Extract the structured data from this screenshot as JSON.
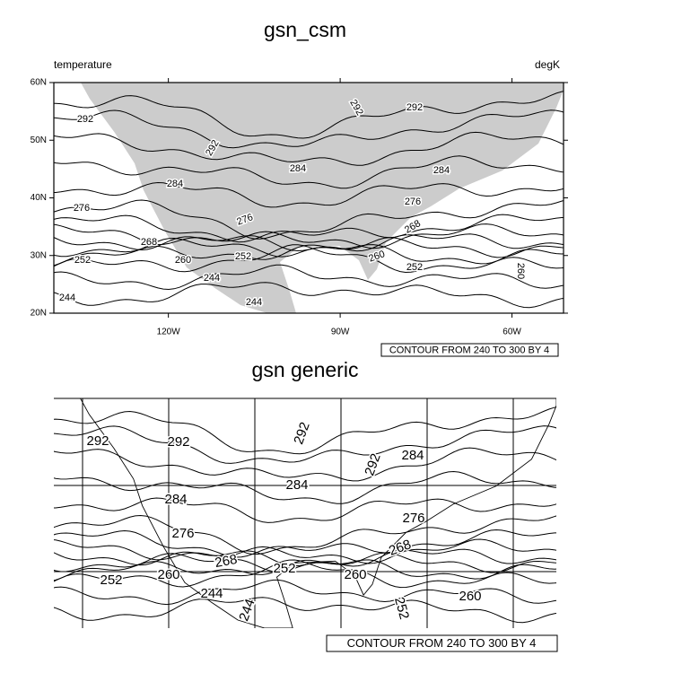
{
  "plots": [
    {
      "title": "gsn_csm",
      "left_string": "temperature",
      "right_string": "degK",
      "lat_ticks": [
        {
          "value": 60,
          "label": "60N"
        },
        {
          "value": 50,
          "label": "50N"
        },
        {
          "value": 40,
          "label": "40N"
        },
        {
          "value": 30,
          "label": "30N"
        },
        {
          "value": 20,
          "label": "20N"
        }
      ],
      "lon_ticks": [
        {
          "value": -120,
          "label": "120W"
        },
        {
          "value": -90,
          "label": "90W"
        },
        {
          "value": -60,
          "label": "60W"
        }
      ],
      "contour_labels": [
        "292",
        "292",
        "292",
        "292",
        "284",
        "284",
        "284",
        "276",
        "276",
        "276",
        "268",
        "268",
        "260",
        "252",
        "260",
        "252",
        "252",
        "260",
        "244",
        "244",
        "244"
      ],
      "info_label": "CONTOUR FROM 240 TO 300 BY 4"
    },
    {
      "title": "gsn generic",
      "contour_labels": [
        "292",
        "292",
        "292",
        "292",
        "284",
        "284",
        "284",
        "276",
        "276",
        "268",
        "268",
        "252",
        "260",
        "260",
        "252",
        "244",
        "244",
        "252",
        "260"
      ],
      "info_label": "CONTOUR FROM 240 TO 300 BY 4"
    }
  ],
  "map": {
    "lonlim": [
      -140,
      -51
    ],
    "latlim": [
      20,
      60
    ]
  }
}
